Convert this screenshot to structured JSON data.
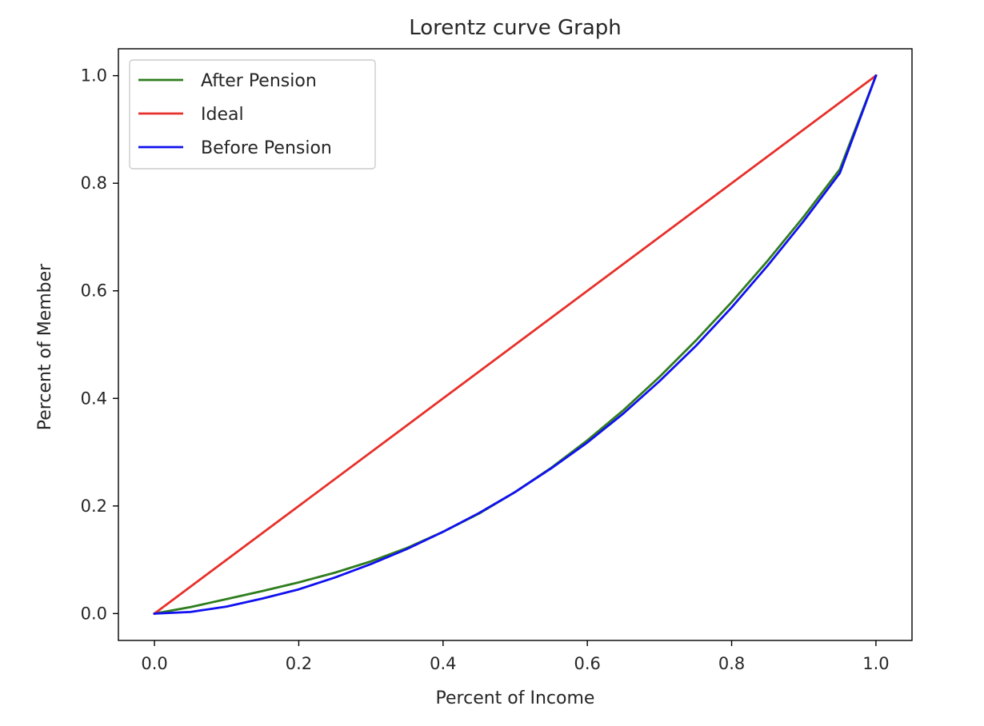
{
  "chart_data": {
    "type": "line",
    "title": "Lorentz curve Graph",
    "xlabel": "Percent of Income",
    "ylabel": "Percent of Member",
    "xlim": [
      -0.05,
      1.05
    ],
    "ylim": [
      -0.05,
      1.05
    ],
    "xticks": [
      0.0,
      0.2,
      0.4,
      0.6,
      0.8,
      1.0
    ],
    "yticks": [
      0.0,
      0.2,
      0.4,
      0.6,
      0.8,
      1.0
    ],
    "xtick_labels": [
      "0.0",
      "0.2",
      "0.4",
      "0.6",
      "0.8",
      "1.0"
    ],
    "ytick_labels": [
      "0.0",
      "0.2",
      "0.4",
      "0.6",
      "0.8",
      "1.0"
    ],
    "grid": false,
    "legend_position": "top-left",
    "series": [
      {
        "name": "After Pension",
        "color": "#2e7d1e",
        "x": [
          0.0,
          0.05,
          0.1,
          0.15,
          0.2,
          0.25,
          0.3,
          0.35,
          0.4,
          0.45,
          0.5,
          0.55,
          0.6,
          0.65,
          0.7,
          0.75,
          0.8,
          0.85,
          0.9,
          0.95,
          1.0
        ],
        "y": [
          0.0,
          0.012,
          0.027,
          0.042,
          0.058,
          0.076,
          0.097,
          0.122,
          0.152,
          0.186,
          0.226,
          0.271,
          0.322,
          0.378,
          0.44,
          0.507,
          0.579,
          0.656,
          0.738,
          0.826,
          1.0
        ]
      },
      {
        "name": "Ideal",
        "color": "#e8302a",
        "x": [
          0.0,
          1.0
        ],
        "y": [
          0.0,
          1.0
        ]
      },
      {
        "name": "Before Pension",
        "color": "#1010f0",
        "x": [
          0.0,
          0.05,
          0.1,
          0.15,
          0.2,
          0.25,
          0.3,
          0.35,
          0.4,
          0.45,
          0.5,
          0.55,
          0.6,
          0.65,
          0.7,
          0.75,
          0.8,
          0.85,
          0.9,
          0.95,
          1.0
        ],
        "y": [
          0.0,
          0.003,
          0.013,
          0.028,
          0.045,
          0.067,
          0.092,
          0.12,
          0.152,
          0.187,
          0.226,
          0.27,
          0.318,
          0.372,
          0.432,
          0.497,
          0.569,
          0.647,
          0.73,
          0.819,
          1.0
        ]
      }
    ]
  }
}
